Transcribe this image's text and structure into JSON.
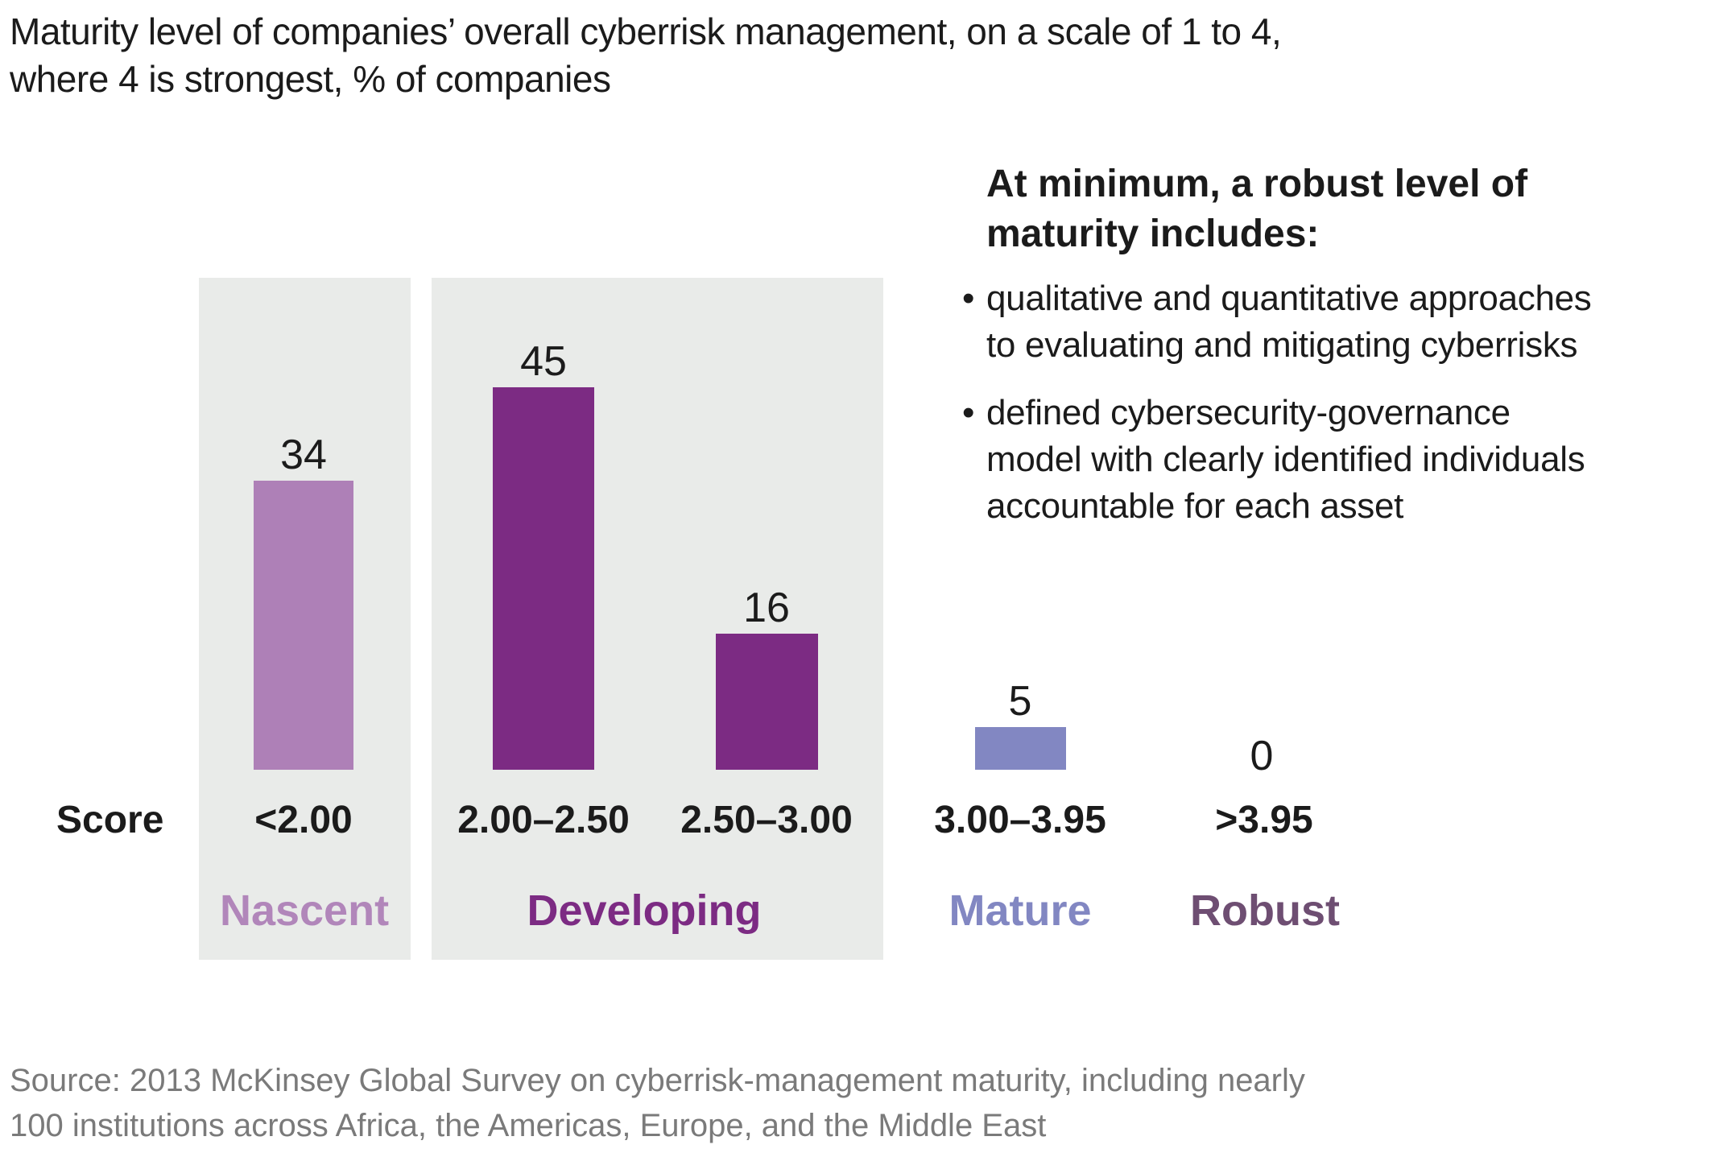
{
  "title": {
    "lines": [
      "Maturity level of companies’ overall cyberrisk management, on a scale of 1 to 4,",
      "where 4 is strongest, % of companies"
    ]
  },
  "chart_data": {
    "type": "bar",
    "title": "Maturity level of companies’ overall cyberrisk management, on a scale of 1 to 4, where 4 is strongest, % of companies",
    "unit": "% of companies",
    "xlabel": "Score",
    "ylabel": "% of companies",
    "ylim": [
      0,
      50
    ],
    "grid": false,
    "legend": "none",
    "categories": [
      "<2.00",
      "2.00–2.50",
      "2.50–3.00",
      "3.00–3.95",
      ">3.95"
    ],
    "values": [
      34,
      45,
      16,
      5,
      0
    ],
    "bars": [
      {
        "score_range": "<2.00",
        "value": 34,
        "maturity": "Nascent",
        "color": "#ae80b7"
      },
      {
        "score_range": "2.00–2.50",
        "value": 45,
        "maturity": "Developing",
        "color": "#7c2b83"
      },
      {
        "score_range": "2.50–3.00",
        "value": 16,
        "maturity": "Developing",
        "color": "#7c2b83"
      },
      {
        "score_range": "3.00–3.95",
        "value": 5,
        "maturity": "Mature",
        "color": "#8287c2"
      },
      {
        "score_range": ">3.95",
        "value": 0,
        "maturity": "Robust",
        "color": "#6e4e72"
      }
    ],
    "maturity_levels": [
      {
        "label": "Nascent",
        "color": "#b186ba"
      },
      {
        "label": "Developing",
        "color": "#7c2b83"
      },
      {
        "label": "Mature",
        "color": "#8287c2"
      },
      {
        "label": "Robust",
        "color": "#6e4e72"
      }
    ],
    "highlight_panel_color": "#e9ebe9",
    "highlighted_groups": [
      "Nascent",
      "Developing"
    ]
  },
  "callout": {
    "bullet_char": "•",
    "heading_lines": [
      "At minimum, a robust level of",
      "maturity includes:"
    ],
    "bullets": [
      {
        "lines": [
          "qualitative and quantitative approaches",
          "to evaluating and mitigating cyberrisks"
        ]
      },
      {
        "lines": [
          "defined cybersecurity-governance",
          "model with clearly identified individuals",
          "accountable for each asset"
        ]
      }
    ]
  },
  "source": {
    "lines": [
      "Source: 2013 McKinsey Global Survey on cyberrisk-management maturity, including nearly",
      "100 institutions across Africa, the Americas, Europe, and the Middle East"
    ]
  }
}
